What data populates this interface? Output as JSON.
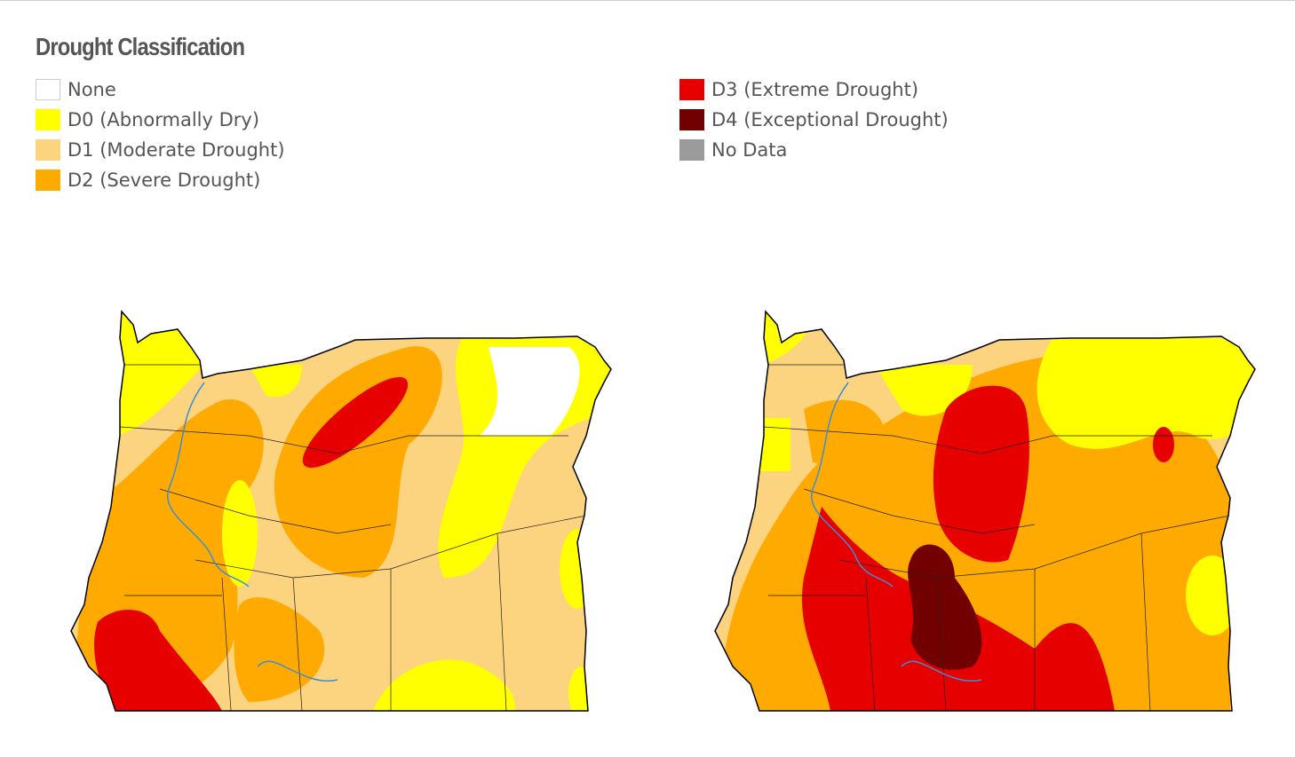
{
  "legend": {
    "title": "Drought Classification",
    "items": [
      {
        "label": "None",
        "color": "#ffffff"
      },
      {
        "label": "D0 (Abnormally Dry)",
        "color": "#ffff00"
      },
      {
        "label": "D1 (Moderate Drought)",
        "color": "#fcd37f"
      },
      {
        "label": "D2 (Severe Drought)",
        "color": "#ffaa00"
      },
      {
        "label": "D3 (Extreme Drought)",
        "color": "#e60000"
      },
      {
        "label": "D4 (Exceptional Drought)",
        "color": "#730000"
      },
      {
        "label": "No Data",
        "color": "#9b9b9b"
      }
    ]
  }
}
